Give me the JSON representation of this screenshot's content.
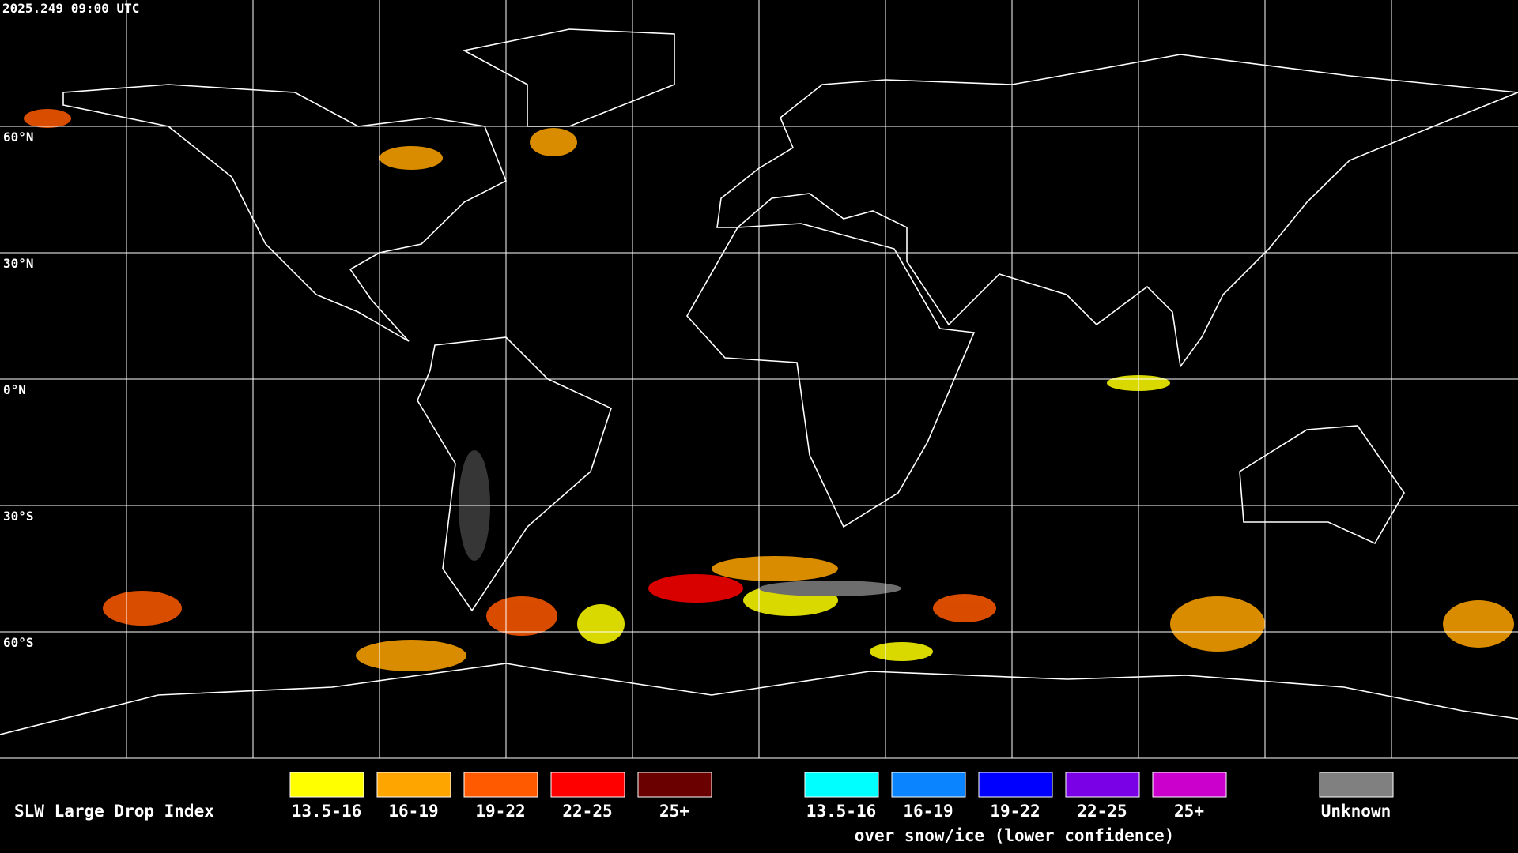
{
  "header": {
    "timestamp": "2025.249 09:00 UTC"
  },
  "map": {
    "lat_labels": [
      "60°N",
      "30°N",
      "0°N",
      "30°S",
      "60°S"
    ]
  },
  "legend": {
    "title": "SLW Large Drop Index",
    "entries": [
      {
        "label": "13.5-16",
        "color": "#ffff00"
      },
      {
        "label": "16-19",
        "color": "#ffa500"
      },
      {
        "label": "19-22",
        "color": "#ff5a00"
      },
      {
        "label": "22-25",
        "color": "#ff0000"
      },
      {
        "label": "25+",
        "color": "#6b0000"
      }
    ],
    "snow_entries": [
      {
        "label": "13.5-16",
        "color": "#00ffff"
      },
      {
        "label": "16-19",
        "color": "#0a84ff"
      },
      {
        "label": "19-22",
        "color": "#0000ff"
      },
      {
        "label": "22-25",
        "color": "#7a00e6"
      },
      {
        "label": "25+",
        "color": "#cc00cc"
      }
    ],
    "snow_note": "over snow/ice (lower confidence)",
    "unknown": {
      "label": "Unknown",
      "color": "#808080"
    }
  }
}
